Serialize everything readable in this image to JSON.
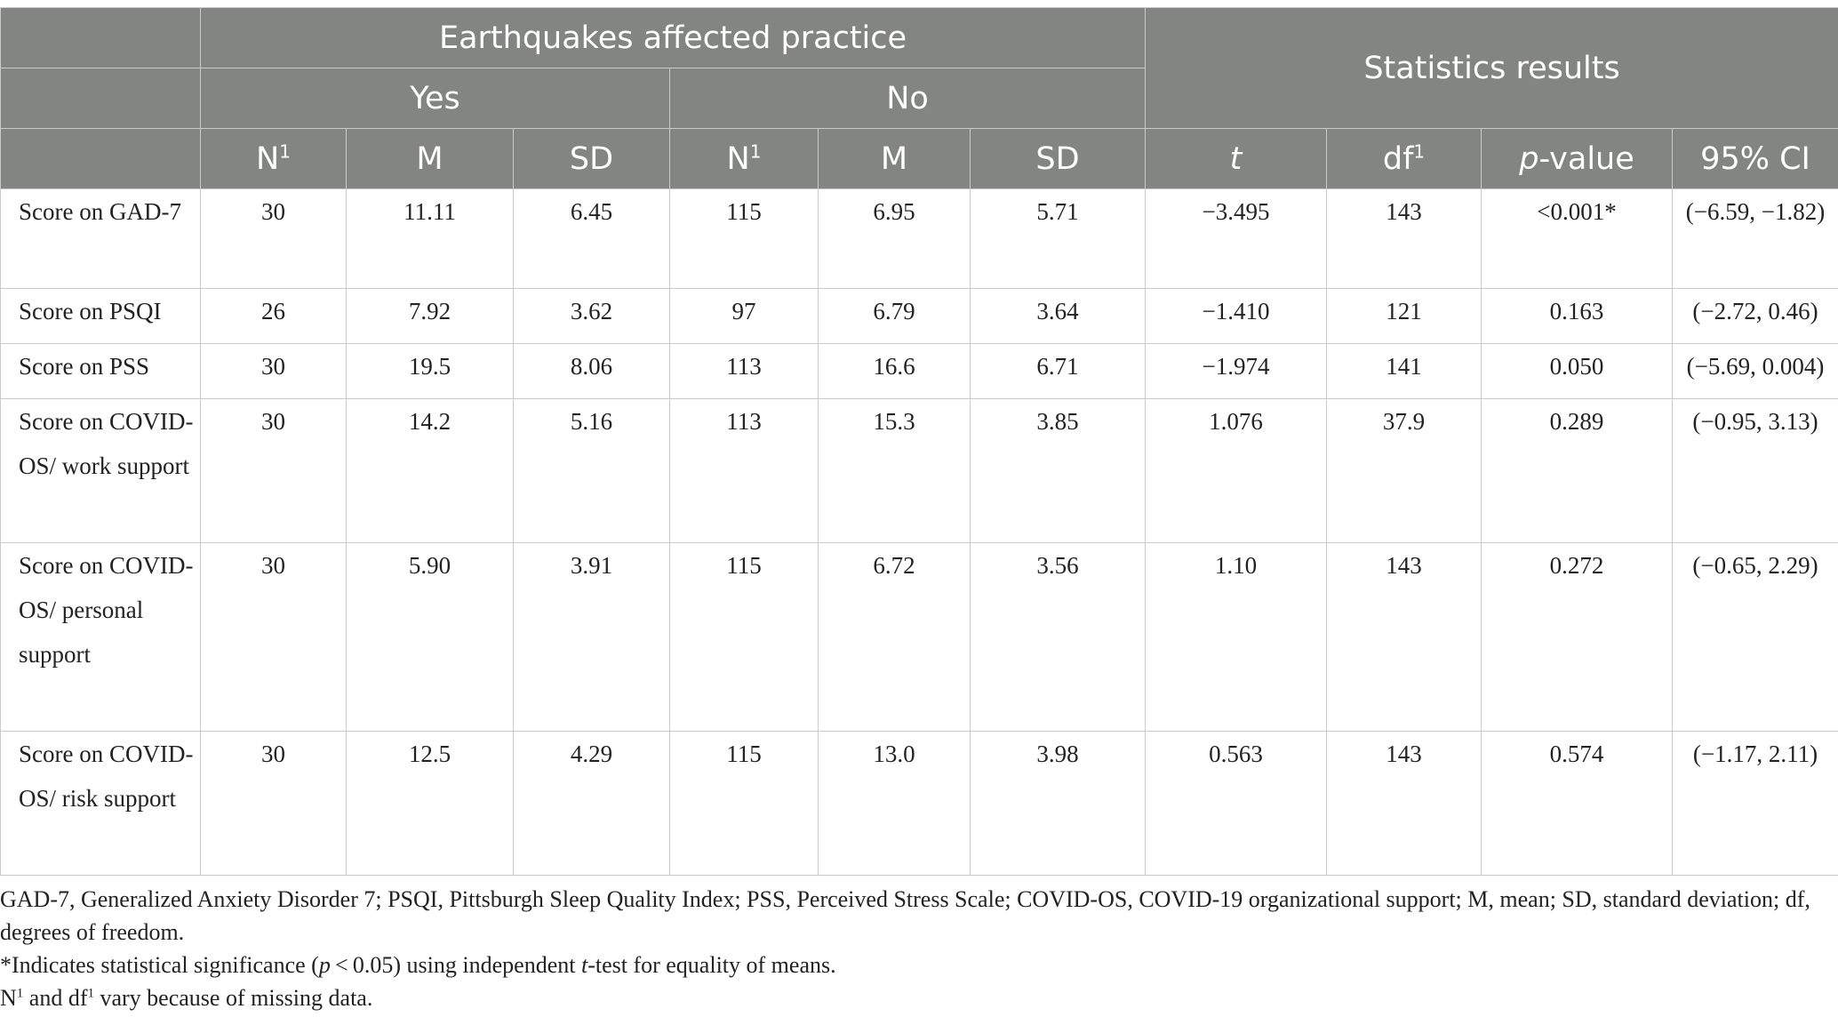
{
  "table": {
    "group_header": {
      "empty": "",
      "affected": "Earthquakes affected practice",
      "stats": "Statistics results"
    },
    "sub_header": {
      "yes": "Yes",
      "no": "No"
    },
    "columns": {
      "n": "N",
      "n_sup": "1",
      "m": "M",
      "sd": "SD",
      "t": "t",
      "df": "df",
      "df_sup": "1",
      "p_italic": "p",
      "p_rest": "-value",
      "ci": "95% CI"
    },
    "rows": [
      {
        "label": "Score on GAD-7",
        "yes_n": "30",
        "yes_m": "11.11",
        "yes_sd": "6.45",
        "no_n": "115",
        "no_m": "6.95",
        "no_sd": "5.71",
        "t": "−3.495",
        "df": "143",
        "p": "<0.001*",
        "ci": "(−6.59, −1.82)"
      },
      {
        "label": "Score on PSQI",
        "yes_n": "26",
        "yes_m": "7.92",
        "yes_sd": "3.62",
        "no_n": "97",
        "no_m": "6.79",
        "no_sd": "3.64",
        "t": "−1.410",
        "df": "121",
        "p": "0.163",
        "ci": "(−2.72, 0.46)"
      },
      {
        "label": "Score on PSS",
        "yes_n": "30",
        "yes_m": "19.5",
        "yes_sd": "8.06",
        "no_n": "113",
        "no_m": "16.6",
        "no_sd": "6.71",
        "t": "−1.974",
        "df": "141",
        "p": "0.050",
        "ci": "(−5.69, 0.004)"
      },
      {
        "label": "Score on COVID-OS/ work support",
        "yes_n": "30",
        "yes_m": "14.2",
        "yes_sd": "5.16",
        "no_n": "113",
        "no_m": "15.3",
        "no_sd": "3.85",
        "t": "1.076",
        "df": "37.9",
        "p": "0.289",
        "ci": "(−0.95, 3.13)"
      },
      {
        "label": "Score on COVID-OS/ personal support",
        "yes_n": "30",
        "yes_m": "5.90",
        "yes_sd": "3.91",
        "no_n": "115",
        "no_m": "6.72",
        "no_sd": "3.56",
        "t": "1.10",
        "df": "143",
        "p": "0.272",
        "ci": "(−0.65, 2.29)"
      },
      {
        "label": "Score on COVID-OS/ risk support",
        "yes_n": "30",
        "yes_m": "12.5",
        "yes_sd": "4.29",
        "no_n": "115",
        "no_m": "13.0",
        "no_sd": "3.98",
        "t": "0.563",
        "df": "143",
        "p": "0.574",
        "ci": "(−1.17, 2.11)"
      }
    ]
  },
  "footnotes": {
    "abbrev": "GAD-7, Generalized Anxiety Disorder 7; PSQI, Pittsburgh Sleep Quality Index; PSS, Perceived Stress Scale; COVID-OS, COVID-19 organizational support; M, mean; SD, standard deviation; df, degrees of freedom.",
    "sig_a": "*Indicates statistical significance (",
    "sig_p": "p",
    "sig_b": " < 0.05) using independent ",
    "sig_t": "t",
    "sig_c": "-test for equality of means.",
    "missing_n": "N",
    "missing_sup1": "1",
    "missing_mid": " and df",
    "missing_sup2": "1",
    "missing_end": " vary because of missing data."
  }
}
